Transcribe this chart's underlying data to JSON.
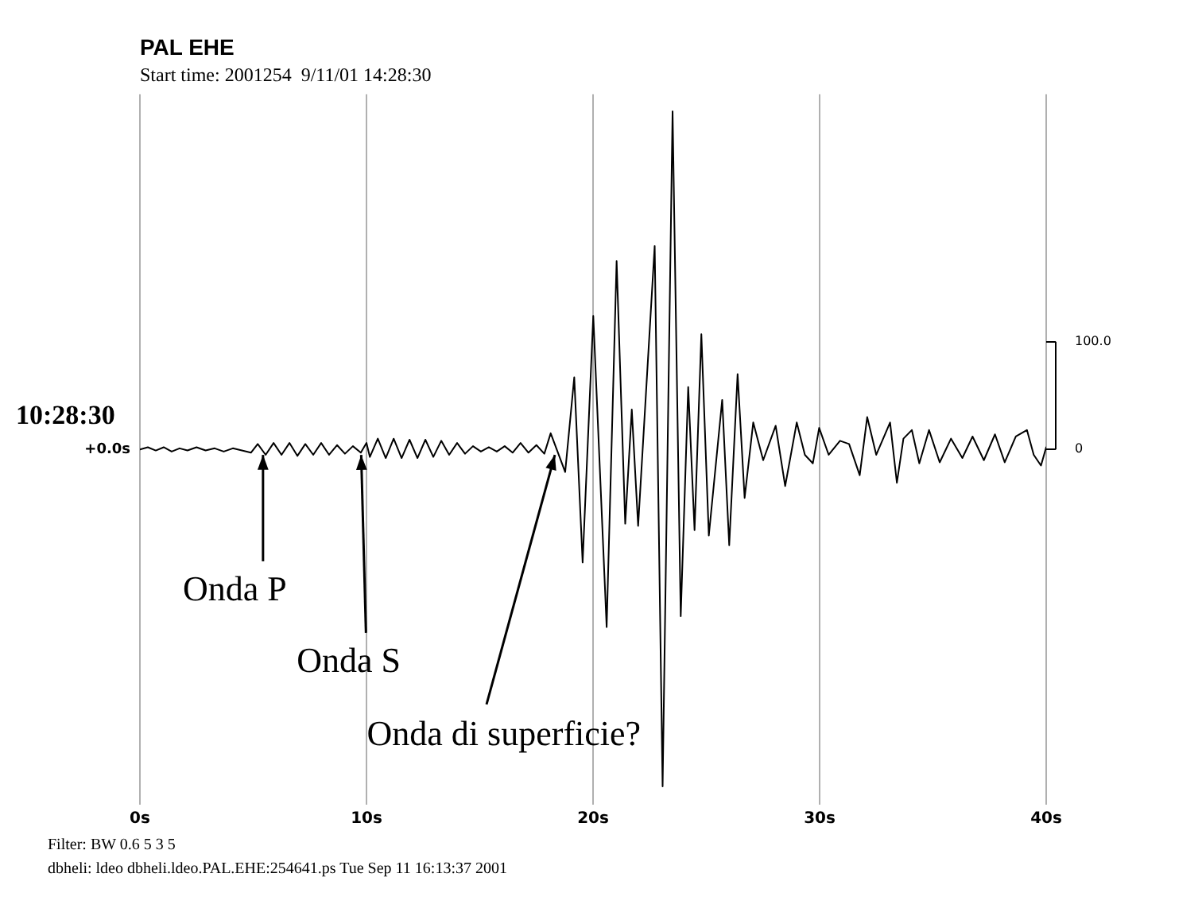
{
  "chart_data": {
    "type": "line",
    "title": "PAL EHE",
    "subtitle": "Start time: 2001254  9/11/01 14:28:30",
    "ylabel": "10:28:30",
    "series": [
      {
        "color": "#000000",
        "x": [
          0,
          0.35,
          0.7,
          1.05,
          1.4,
          1.75,
          2.1,
          2.5,
          2.9,
          3.3,
          3.7,
          4.1,
          4.5,
          4.9,
          5.2,
          5.55,
          5.9,
          6.25,
          6.6,
          6.95,
          7.3,
          7.65,
          8.0,
          8.35,
          8.7,
          9.05,
          9.4,
          9.75,
          10.0,
          10.15,
          10.5,
          10.85,
          11.2,
          11.55,
          11.9,
          12.25,
          12.6,
          12.95,
          13.3,
          13.65,
          14.0,
          14.35,
          14.7,
          15.05,
          15.4,
          15.75,
          16.1,
          16.45,
          16.8,
          17.15,
          17.5,
          17.85,
          18.13,
          18.77,
          19.17,
          19.54,
          20.01,
          20.6,
          21.04,
          21.42,
          21.71,
          21.99,
          22.72,
          23.07,
          23.51,
          23.87,
          24.2,
          24.48,
          24.78,
          25.11,
          25.7,
          26.01,
          26.38,
          26.69,
          27.07,
          27.51,
          28.06,
          28.48,
          28.99,
          29.35,
          29.7,
          29.98,
          30.4,
          30.9,
          31.3,
          31.77,
          32.1,
          32.5,
          33.11,
          33.41,
          33.7,
          34.07,
          34.4,
          34.83,
          35.3,
          35.8,
          36.3,
          36.75,
          37.25,
          37.74,
          38.17,
          38.66,
          39.15,
          39.45,
          39.77,
          40
        ],
        "values": [
          0,
          2,
          -1,
          2,
          -2,
          1,
          -1,
          2,
          -1,
          1,
          -2,
          1,
          -1,
          -3,
          5,
          -5,
          6,
          -5,
          6,
          -6,
          5,
          -5,
          6,
          -5,
          4,
          -4,
          3,
          -3,
          6,
          -7,
          10,
          -8,
          10,
          -8,
          9,
          -8,
          9,
          -7,
          8,
          -5,
          6,
          -4,
          3,
          -2,
          2,
          -2,
          3,
          -3,
          6,
          -3,
          4,
          -4,
          15,
          -21,
          67,
          -105,
          124,
          -165,
          175,
          -69,
          37,
          -71,
          189,
          -313,
          314,
          -155,
          58,
          -75,
          107,
          -80,
          46,
          -89,
          70,
          -45,
          25,
          -10,
          22,
          -34,
          25,
          -5,
          -13,
          20,
          -5,
          8,
          5,
          -24,
          30,
          -5,
          25,
          -31,
          10,
          18,
          -13,
          18,
          -12,
          10,
          -8,
          12,
          -10,
          14,
          -12,
          12,
          18,
          -5,
          -15,
          2
        ]
      }
    ],
    "xlim": [
      0,
      40
    ],
    "xticks": [
      {
        "value": 0,
        "label": "0s"
      },
      {
        "value": 10,
        "label": "10s"
      },
      {
        "value": 20,
        "label": "20s"
      },
      {
        "value": 30,
        "label": "30s"
      },
      {
        "value": 40,
        "label": "40s"
      }
    ],
    "ylim": [
      -330,
      330
    ],
    "yticks": [
      {
        "value": 0,
        "label": "0"
      },
      {
        "value": 100,
        "label": "100.0"
      }
    ],
    "grid": "x",
    "marker": "none",
    "annotations": [
      {
        "text": "+0.0s",
        "x": 0,
        "y": 0
      },
      {
        "text": "Onda P",
        "x": 5.4,
        "y": 0
      },
      {
        "text": "Onda S",
        "x": 9.8,
        "y": 0
      },
      {
        "text": "Onda di superficie?",
        "x": 18.3,
        "y": 0
      },
      "Filter: BW 0.6 5 3 5",
      "dbheli: ldeo dbheli.ldeo.PAL.EHE:254641.ps Tue Sep 11 16:13:37 2001"
    ]
  }
}
